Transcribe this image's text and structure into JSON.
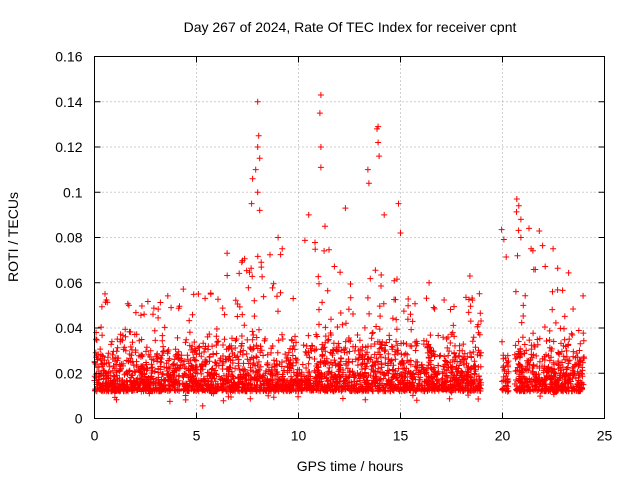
{
  "chart_data": {
    "type": "scatter",
    "title": "Day 267 of 2024, Rate Of TEC Index for receiver cpnt",
    "xlabel": "GPS time / hours",
    "ylabel": "ROTI / TECUs",
    "xlim": [
      0,
      25
    ],
    "ylim": [
      0,
      0.16
    ],
    "xticks": [
      "0",
      "5",
      "10",
      "15",
      "20",
      "25"
    ],
    "yticks": [
      "0",
      "0.02",
      "0.04",
      "0.06",
      "0.08",
      "0.1",
      "0.12",
      "0.14",
      "0.16"
    ],
    "grid": true,
    "marker": "+",
    "color": "#ff0000",
    "series": [
      {
        "name": "ROTI",
        "description": "dense scatter, ~0.005–0.06 TECU throughout, gap 19–20 h and 20.3–20.6 h",
        "base_envelope": [
          {
            "hour": 0.0,
            "low": 0.008,
            "high": 0.062
          },
          {
            "hour": 1.0,
            "low": 0.006,
            "high": 0.05
          },
          {
            "hour": 2.5,
            "low": 0.006,
            "high": 0.055
          },
          {
            "hour": 5.0,
            "low": 0.004,
            "high": 0.06
          },
          {
            "hour": 7.0,
            "low": 0.008,
            "high": 0.07
          },
          {
            "hour": 10.0,
            "low": 0.008,
            "high": 0.08
          },
          {
            "hour": 13.0,
            "low": 0.008,
            "high": 0.08
          },
          {
            "hour": 15.0,
            "low": 0.008,
            "high": 0.06
          },
          {
            "hour": 18.5,
            "low": 0.008,
            "high": 0.055
          },
          {
            "hour": 20.5,
            "low": 0.008,
            "high": 0.095
          },
          {
            "hour": 24.0,
            "low": 0.008,
            "high": 0.065
          }
        ],
        "gaps": [
          [
            18.95,
            19.95
          ],
          [
            20.3,
            20.6
          ]
        ],
        "peaks": [
          {
            "x": 8.0,
            "y": 0.14
          },
          {
            "x": 8.05,
            "y": 0.125
          },
          {
            "x": 8.0,
            "y": 0.12
          },
          {
            "x": 8.1,
            "y": 0.115
          },
          {
            "x": 7.9,
            "y": 0.11
          },
          {
            "x": 7.75,
            "y": 0.106
          },
          {
            "x": 8.0,
            "y": 0.1
          },
          {
            "x": 7.7,
            "y": 0.095
          },
          {
            "x": 8.1,
            "y": 0.092
          },
          {
            "x": 11.1,
            "y": 0.143
          },
          {
            "x": 11.05,
            "y": 0.135
          },
          {
            "x": 11.1,
            "y": 0.12
          },
          {
            "x": 11.1,
            "y": 0.111
          },
          {
            "x": 10.5,
            "y": 0.09
          },
          {
            "x": 11.3,
            "y": 0.085
          },
          {
            "x": 13.9,
            "y": 0.129
          },
          {
            "x": 13.85,
            "y": 0.128
          },
          {
            "x": 13.9,
            "y": 0.122
          },
          {
            "x": 13.95,
            "y": 0.116
          },
          {
            "x": 13.4,
            "y": 0.11
          },
          {
            "x": 13.45,
            "y": 0.104
          },
          {
            "x": 12.3,
            "y": 0.093
          },
          {
            "x": 14.9,
            "y": 0.095
          },
          {
            "x": 14.2,
            "y": 0.09
          },
          {
            "x": 20.7,
            "y": 0.097
          },
          {
            "x": 20.8,
            "y": 0.094
          },
          {
            "x": 20.9,
            "y": 0.088
          },
          {
            "x": 21.3,
            "y": 0.084
          },
          {
            "x": 20.9,
            "y": 0.08
          },
          {
            "x": 21.4,
            "y": 0.075
          },
          {
            "x": 6.5,
            "y": 0.073
          },
          {
            "x": 9.2,
            "y": 0.075
          },
          {
            "x": 9.0,
            "y": 0.08
          },
          {
            "x": 15.0,
            "y": 0.082
          },
          {
            "x": 16.4,
            "y": 0.06
          },
          {
            "x": 18.4,
            "y": 0.063
          }
        ]
      }
    ]
  }
}
